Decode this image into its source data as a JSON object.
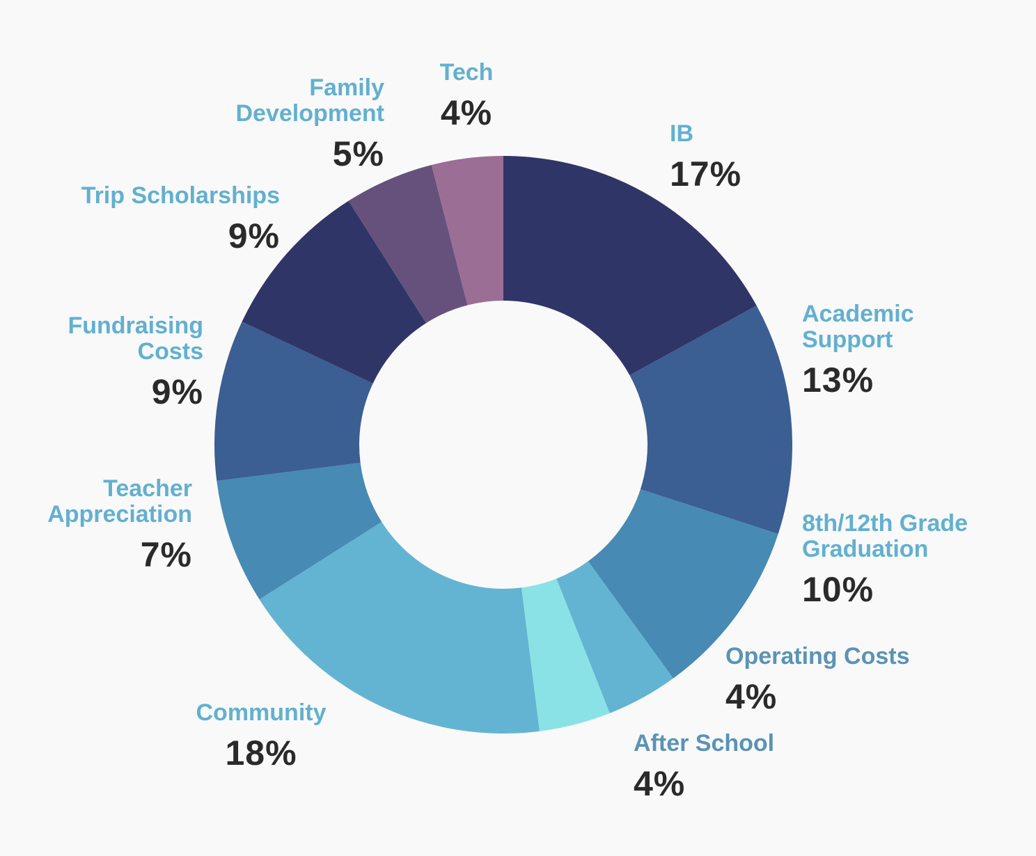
{
  "chart_data": {
    "type": "pie",
    "donut": true,
    "title": "",
    "slices": [
      {
        "label": "IB",
        "value": 17,
        "value_label": "17%",
        "color": "#303568",
        "label_color": "#62b0cf"
      },
      {
        "label": "Academic\nSupport",
        "value": 13,
        "value_label": "13%",
        "color": "#3b5e93",
        "label_color": "#62b0cf"
      },
      {
        "label": "8th/12th Grade\nGraduation",
        "value": 10,
        "value_label": "10%",
        "color": "#478ab4",
        "label_color": "#62b0cf"
      },
      {
        "label": "Operating Costs",
        "value": 4,
        "value_label": "4%",
        "color": "#63b4d3",
        "label_color": "#5a93b4"
      },
      {
        "label": "After School",
        "value": 4,
        "value_label": "4%",
        "color": "#8be2e6",
        "label_color": "#5a93b4"
      },
      {
        "label": "Community",
        "value": 18,
        "value_label": "18%",
        "color": "#63b4d3",
        "label_color": "#62b0cf"
      },
      {
        "label": "Teacher\nAppreciation",
        "value": 7,
        "value_label": "7%",
        "color": "#478ab4",
        "label_color": "#62b0cf"
      },
      {
        "label": "Fundraising\nCosts",
        "value": 9,
        "value_label": "9%",
        "color": "#3b5e93",
        "label_color": "#62b0cf"
      },
      {
        "label": "Trip Scholarships",
        "value": 9,
        "value_label": "9%",
        "color": "#303568",
        "label_color": "#62b0cf"
      },
      {
        "label": "Family\nDevelopment",
        "value": 5,
        "value_label": "5%",
        "color": "#66517c",
        "label_color": "#62b0cf"
      },
      {
        "label": "Tech",
        "value": 4,
        "value_label": "4%",
        "color": "#9b6e96",
        "label_color": "#62b0cf"
      }
    ]
  }
}
